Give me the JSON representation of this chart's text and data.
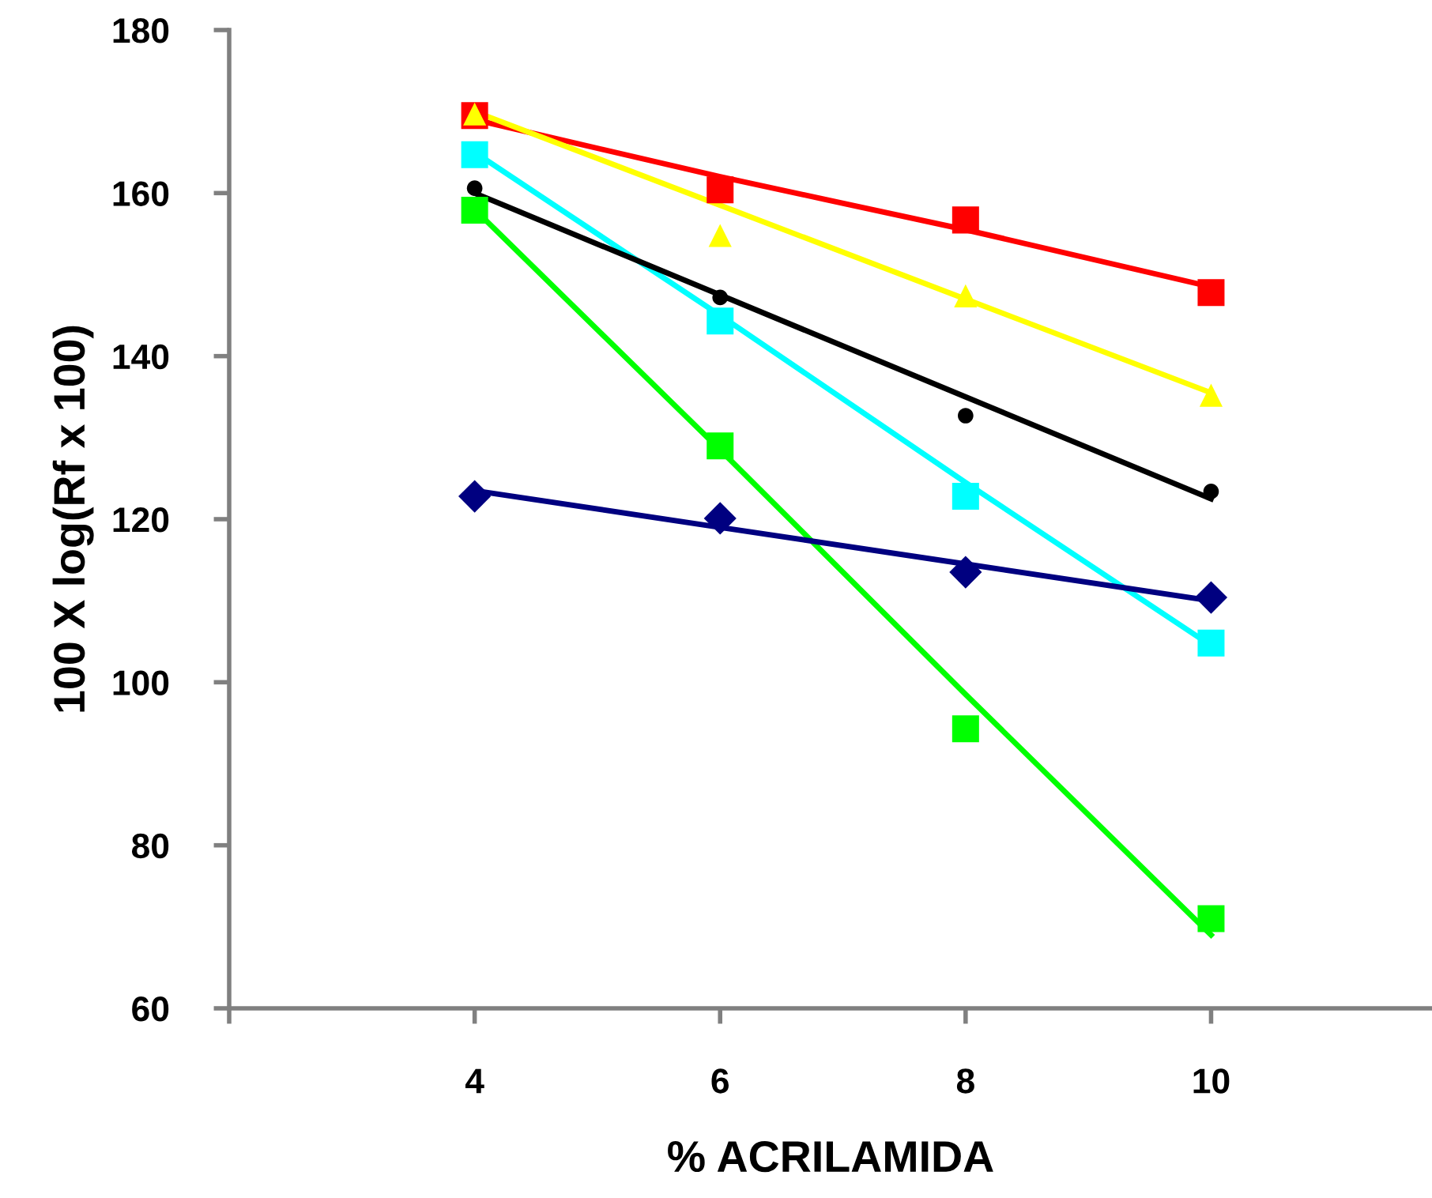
{
  "chart_data": {
    "type": "scatter",
    "xlabel": "% ACRILAMIDA",
    "ylabel": "100 X log(Rf x 100)",
    "xlim": [
      2,
      11.8
    ],
    "xticks": [
      {
        "value": 2,
        "label": null
      },
      4,
      6,
      8,
      10
    ],
    "ylim": [
      60,
      180
    ],
    "yticks": [
      60,
      80,
      100,
      120,
      140,
      160,
      180
    ],
    "grid": false,
    "legend": false,
    "x": [
      4,
      6,
      8,
      10
    ],
    "series": [
      {
        "color": "#ff0000",
        "marker": "square",
        "values": [
          169.5,
          160.4,
          156.7,
          147.8
        ]
      },
      {
        "color": "#ffff00",
        "marker": "triangle",
        "values": [
          169.7,
          154.8,
          147.4,
          135.2
        ]
      },
      {
        "color": "#00ffff",
        "marker": "square",
        "values": [
          164.7,
          144.3,
          122.8,
          104.8
        ]
      },
      {
        "color": "#000000",
        "marker": "circle",
        "values": [
          160.6,
          147.2,
          132.7,
          123.4
        ]
      },
      {
        "color": "#00ff00",
        "marker": "square",
        "values": [
          157.9,
          129.0,
          94.3,
          71.0
        ]
      },
      {
        "color": "#000080",
        "marker": "diamond",
        "values": [
          122.8,
          120.1,
          113.5,
          110.4
        ]
      },
      {
        "type": "line",
        "color": "#ff0000",
        "values": [
          169,
          162,
          155.5,
          148.5
        ]
      },
      {
        "type": "line",
        "color": "#ffff00",
        "values": [
          170,
          158.5,
          147,
          135.5
        ]
      },
      {
        "type": "line",
        "color": "#00ffff",
        "values": [
          165,
          145,
          124.5,
          104.5
        ]
      },
      {
        "type": "line",
        "color": "#000000",
        "values": [
          160,
          147.5,
          135,
          122.5
        ]
      },
      {
        "type": "line",
        "color": "#00ff00",
        "values": [
          158,
          128.5,
          98.5,
          69
        ]
      },
      {
        "type": "line",
        "color": "#000080",
        "values": [
          123.5,
          119,
          114.5,
          110
        ]
      }
    ]
  }
}
